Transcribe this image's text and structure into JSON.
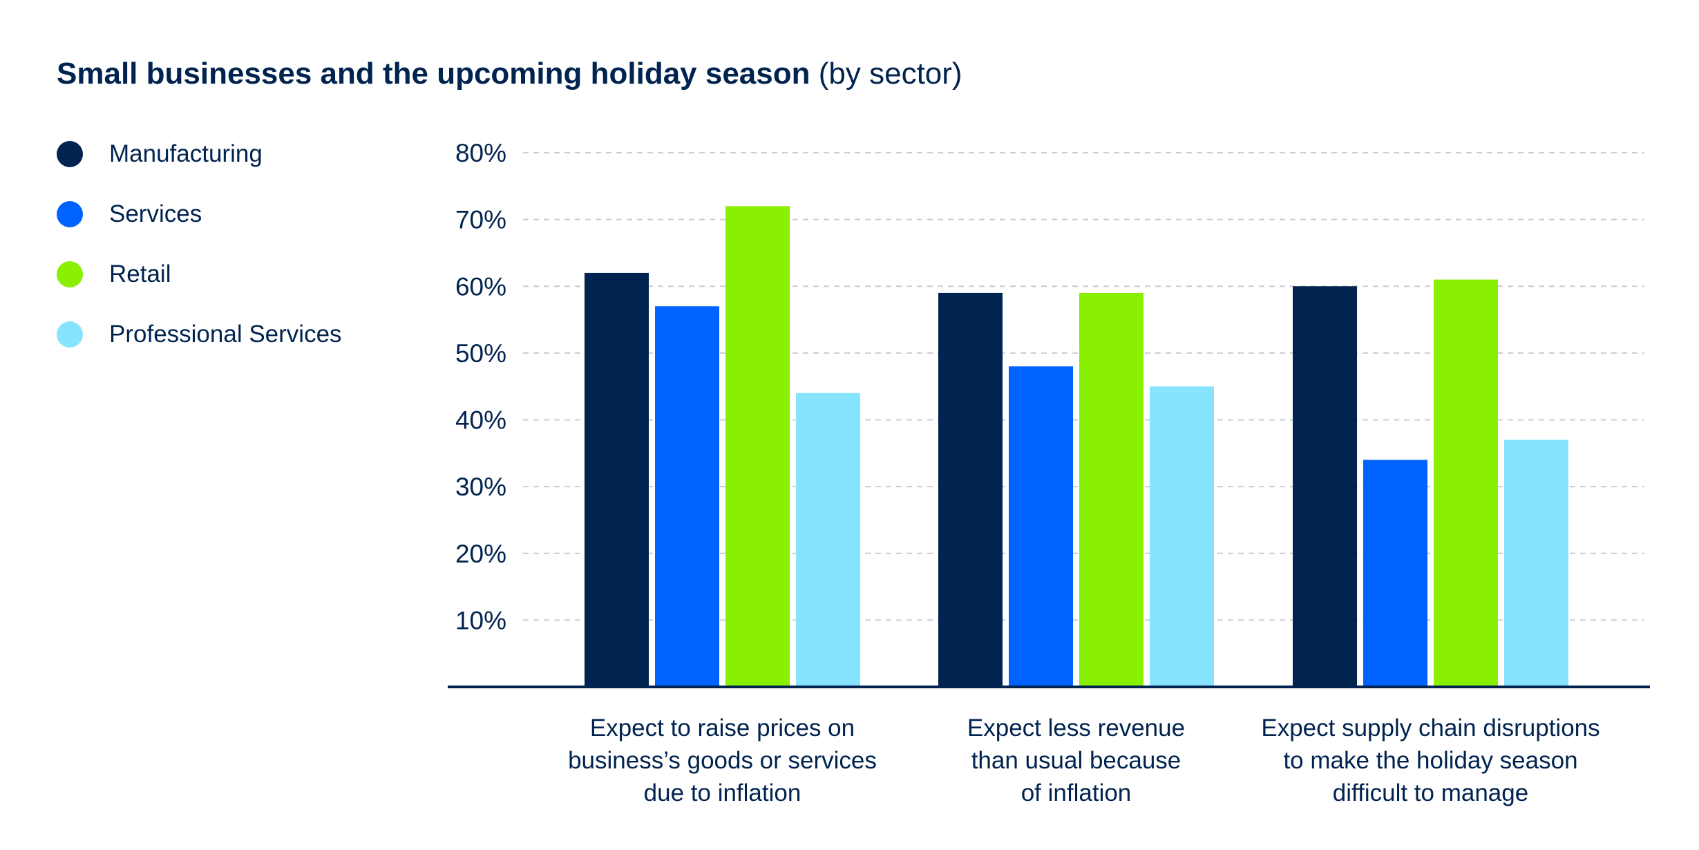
{
  "chart_data": {
    "type": "bar",
    "title": "Small businesses and the upcoming holiday season",
    "subtitle": "(by sector)",
    "categories": [
      [
        "Expect to raise prices on",
        "business’s goods or services",
        "due to inflation"
      ],
      [
        "Expect less revenue",
        "than usual because",
        "of inflation"
      ],
      [
        "Expect supply chain disruptions",
        "to make the holiday season",
        "difficult to manage"
      ]
    ],
    "series": [
      {
        "name": "Manufacturing",
        "color": "#00234f",
        "values": [
          62,
          59,
          60
        ]
      },
      {
        "name": "Services",
        "color": "#0062ff",
        "values": [
          57,
          48,
          34
        ]
      },
      {
        "name": "Retail",
        "color": "#88f000",
        "values": [
          72,
          59,
          61
        ]
      },
      {
        "name": "Professional Services",
        "color": "#86e4ff",
        "values": [
          44,
          45,
          37
        ]
      }
    ],
    "yticks": [
      "10%",
      "20%",
      "30%",
      "40%",
      "50%",
      "60%",
      "70%",
      "80%"
    ],
    "ylim": [
      0,
      80
    ],
    "ylabel": "",
    "xlabel": "",
    "grid": true,
    "legend": "left"
  }
}
